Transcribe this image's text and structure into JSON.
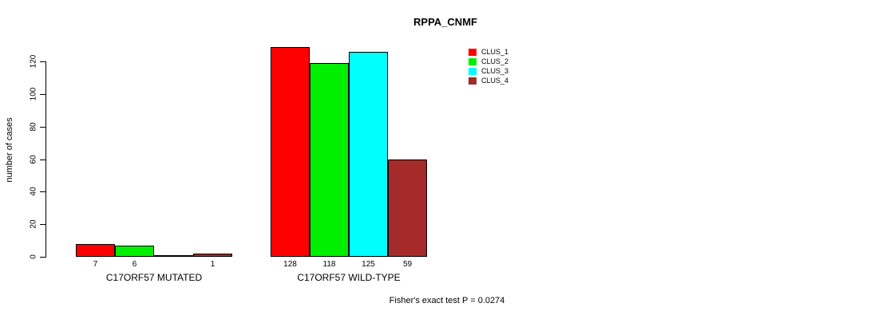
{
  "title": "RPPA_CNMF",
  "y_axis": {
    "label": "number of cases",
    "tick_labels": [
      "0",
      "20",
      "40",
      "60",
      "80",
      "100",
      "120"
    ]
  },
  "legend": {
    "items": [
      {
        "label": "CLUS_1",
        "color": "#FF0000"
      },
      {
        "label": "CLUS_2",
        "color": "#00EE00"
      },
      {
        "label": "CLUS_3",
        "color": "#00FFFF"
      },
      {
        "label": "CLUS_4",
        "color": "#A52A2A"
      }
    ]
  },
  "footer": "Fisher's exact test P = 0.0274",
  "chart_data": {
    "type": "bar",
    "title": "RPPA_CNMF",
    "xlabel": "",
    "ylabel": "number of cases",
    "ylim": [
      0,
      120
    ],
    "yticks": [
      0,
      20,
      40,
      60,
      80,
      100,
      120
    ],
    "grid": false,
    "legend_position": "top-right",
    "categories": [
      "C17ORF57 MUTATED",
      "C17ORF57 WILD-TYPE"
    ],
    "series": [
      {
        "name": "CLUS_1",
        "color": "#FF0000",
        "values": [
          7,
          128
        ]
      },
      {
        "name": "CLUS_2",
        "color": "#00EE00",
        "values": [
          6,
          118
        ]
      },
      {
        "name": "CLUS_3",
        "color": "#00FFFF",
        "values": [
          0,
          125
        ]
      },
      {
        "name": "CLUS_4",
        "color": "#A52A2A",
        "values": [
          1,
          59
        ]
      }
    ],
    "bar_value_labels": [
      [
        "7",
        "6",
        "",
        "1"
      ],
      [
        "128",
        "118",
        "125",
        "59"
      ]
    ],
    "annotation": "Fisher's exact test P = 0.0274"
  }
}
